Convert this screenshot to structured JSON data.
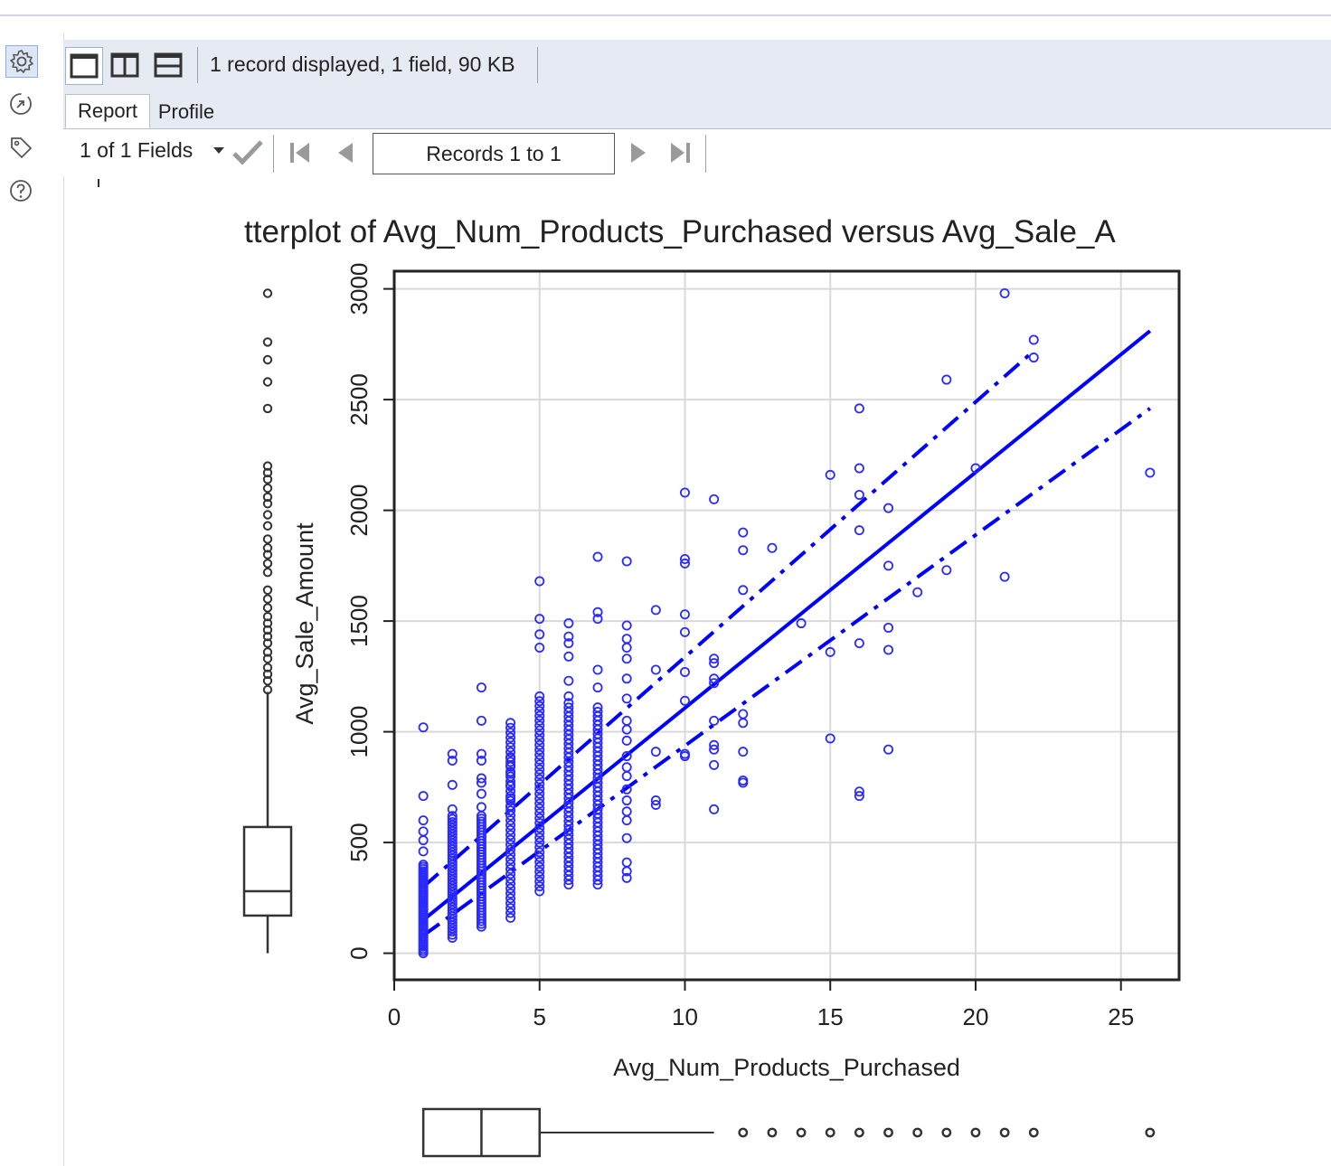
{
  "toolbar": {
    "status": "1 record displayed, 1 field, 90 KB",
    "layout_buttons": [
      "single-pane",
      "side-by-side",
      "stacked"
    ]
  },
  "tabs": [
    {
      "label": "Report",
      "active": true
    },
    {
      "label": "Profile",
      "active": false
    }
  ],
  "nav": {
    "fields_label": "1 of 1 Fields",
    "records_label": "Records 1 to 1"
  },
  "rail_icons": [
    "gear-icon",
    "compass-icon",
    "tag-icon",
    "help-icon"
  ],
  "colors": {
    "points": "#2a2aff",
    "lines": "#0000ff",
    "toolbar": "#e6ebf3"
  },
  "chart_data": {
    "type": "scatter",
    "title": "tterplot of Avg_Num_Products_Purchased versus Avg_Sale_A",
    "xlabel": "Avg_Num_Products_Purchased",
    "ylabel": "Avg_Sale_Amount",
    "xlim": [
      0,
      27
    ],
    "ylim": [
      -120,
      3080
    ],
    "xticks": [
      0,
      5,
      10,
      15,
      20,
      25
    ],
    "yticks": [
      0,
      500,
      1000,
      1500,
      2000,
      2500,
      3000
    ],
    "grid": true,
    "columns": [
      {
        "x": 1,
        "min": 0,
        "max": 400
      },
      {
        "x": 2,
        "min": 70,
        "max": 620
      },
      {
        "x": 3,
        "min": 120,
        "max": 620
      },
      {
        "x": 4,
        "min": 160,
        "max": 1040
      },
      {
        "x": 5,
        "min": 280,
        "max": 1160
      },
      {
        "x": 6,
        "min": 310,
        "max": 1130
      },
      {
        "x": 7,
        "min": 310,
        "max": 1110
      }
    ],
    "points": [
      [
        1,
        1020
      ],
      [
        1,
        710
      ],
      [
        1,
        600
      ],
      [
        1,
        550
      ],
      [
        1,
        510
      ],
      [
        1,
        460
      ],
      [
        2,
        900
      ],
      [
        2,
        870
      ],
      [
        2,
        760
      ],
      [
        2,
        650
      ],
      [
        3,
        1200
      ],
      [
        3,
        1050
      ],
      [
        3,
        900
      ],
      [
        3,
        870
      ],
      [
        3,
        790
      ],
      [
        3,
        770
      ],
      [
        3,
        720
      ],
      [
        3,
        660
      ],
      [
        4,
        880
      ],
      [
        4,
        850
      ],
      [
        4,
        810
      ],
      [
        4,
        760
      ],
      [
        4,
        700
      ],
      [
        4,
        660
      ],
      [
        5,
        1680
      ],
      [
        5,
        1510
      ],
      [
        5,
        1440
      ],
      [
        5,
        1380
      ],
      [
        6,
        1490
      ],
      [
        6,
        1430
      ],
      [
        6,
        1400
      ],
      [
        6,
        1340
      ],
      [
        6,
        1230
      ],
      [
        6,
        1160
      ],
      [
        7,
        1790
      ],
      [
        7,
        1540
      ],
      [
        7,
        1510
      ],
      [
        7,
        1280
      ],
      [
        7,
        1200
      ],
      [
        8,
        1770
      ],
      [
        8,
        1480
      ],
      [
        8,
        1420
      ],
      [
        8,
        1380
      ],
      [
        8,
        1330
      ],
      [
        8,
        1240
      ],
      [
        8,
        1150
      ],
      [
        8,
        1050
      ],
      [
        8,
        1010
      ],
      [
        8,
        960
      ],
      [
        8,
        890
      ],
      [
        8,
        840
      ],
      [
        8,
        800
      ],
      [
        8,
        740
      ],
      [
        8,
        690
      ],
      [
        8,
        640
      ],
      [
        8,
        600
      ],
      [
        8,
        520
      ],
      [
        8,
        410
      ],
      [
        8,
        370
      ],
      [
        8,
        340
      ],
      [
        9,
        1550
      ],
      [
        9,
        1280
      ],
      [
        9,
        910
      ],
      [
        9,
        690
      ],
      [
        9,
        670
      ],
      [
        10,
        2080
      ],
      [
        10,
        1780
      ],
      [
        10,
        1760
      ],
      [
        10,
        1530
      ],
      [
        10,
        1450
      ],
      [
        10,
        1270
      ],
      [
        10,
        1140
      ],
      [
        10,
        900
      ],
      [
        10,
        890
      ],
      [
        11,
        2050
      ],
      [
        11,
        1330
      ],
      [
        11,
        1310
      ],
      [
        11,
        1240
      ],
      [
        11,
        1220
      ],
      [
        11,
        1050
      ],
      [
        11,
        940
      ],
      [
        11,
        920
      ],
      [
        11,
        850
      ],
      [
        11,
        650
      ],
      [
        12,
        1900
      ],
      [
        12,
        1820
      ],
      [
        12,
        1640
      ],
      [
        12,
        1080
      ],
      [
        12,
        1040
      ],
      [
        12,
        910
      ],
      [
        12,
        780
      ],
      [
        12,
        770
      ],
      [
        13,
        1830
      ],
      [
        14,
        1490
      ],
      [
        15,
        2160
      ],
      [
        15,
        1360
      ],
      [
        15,
        970
      ],
      [
        16,
        2460
      ],
      [
        16,
        2190
      ],
      [
        16,
        2070
      ],
      [
        16,
        1910
      ],
      [
        16,
        1400
      ],
      [
        16,
        730
      ],
      [
        16,
        710
      ],
      [
        17,
        2010
      ],
      [
        17,
        1750
      ],
      [
        17,
        1470
      ],
      [
        17,
        1370
      ],
      [
        17,
        920
      ],
      [
        18,
        1630
      ],
      [
        19,
        2590
      ],
      [
        19,
        1730
      ],
      [
        20,
        2190
      ],
      [
        21,
        2980
      ],
      [
        21,
        1700
      ],
      [
        22,
        2770
      ],
      [
        22,
        2690
      ],
      [
        26,
        2170
      ]
    ],
    "fit_line": {
      "x": [
        1,
        26
      ],
      "y": [
        150,
        2810
      ]
    },
    "upper_band": {
      "x": [
        1,
        22
      ],
      "y": [
        300,
        2720
      ]
    },
    "lower_band": {
      "x": [
        1,
        26
      ],
      "y": [
        80,
        2460
      ]
    },
    "y_boxplot": {
      "whisker_min": 0,
      "q1": 170,
      "median": 280,
      "q3": 570,
      "whisker_max": 1180,
      "outliers": [
        1190,
        1230,
        1260,
        1290,
        1330,
        1360,
        1400,
        1430,
        1460,
        1490,
        1520,
        1560,
        1600,
        1640,
        1720,
        1760,
        1800,
        1830,
        1870,
        1930,
        1980,
        2030,
        2060,
        2100,
        2140,
        2170,
        2200,
        2460,
        2580,
        2680,
        2760,
        2980
      ]
    },
    "x_boxplot": {
      "whisker_min": 1,
      "q1": 1,
      "median": 3,
      "q3": 5,
      "whisker_max": 11,
      "outliers": [
        12,
        13,
        14,
        15,
        16,
        17,
        18,
        19,
        20,
        21,
        22,
        26
      ]
    }
  }
}
